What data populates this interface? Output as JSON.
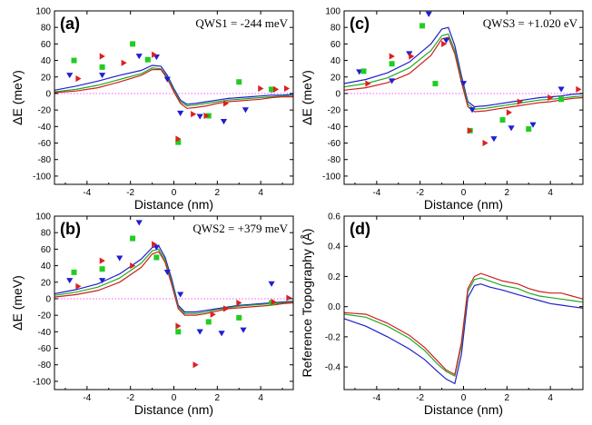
{
  "chart_data": [
    {
      "panel": "(a)",
      "type": "line",
      "annotation": "QWS1 = -244 meV",
      "xlabel": "Distance (nm)",
      "ylabel": "ΔE (meV)",
      "xlim": [
        -5.5,
        5.5
      ],
      "ylim": [
        -110,
        100
      ],
      "xticks": [
        -4,
        -2,
        0,
        2,
        4
      ],
      "yticks": [
        -100,
        -80,
        -60,
        -40,
        -20,
        0,
        20,
        40,
        60,
        80,
        100
      ],
      "zero_line": true,
      "lines": [
        {
          "color": "#1f1fd0",
          "x": [
            -5.5,
            -4.5,
            -3.5,
            -2.5,
            -1.5,
            -1.0,
            -0.6,
            -0.3,
            0.0,
            0.3,
            0.6,
            1.0,
            1.5,
            2.0,
            2.5,
            3.0,
            3.5,
            4.0,
            4.5,
            5.0,
            5.5
          ],
          "y": [
            4,
            9,
            15,
            22,
            28,
            34,
            33,
            22,
            6,
            -8,
            -13,
            -12,
            -10,
            -8,
            -6,
            -5,
            -4,
            -3,
            -2,
            -2,
            -1
          ]
        },
        {
          "color": "#22aa22",
          "x": [
            -5.5,
            -4.5,
            -3.5,
            -2.5,
            -1.5,
            -1.0,
            -0.6,
            -0.3,
            0.0,
            0.3,
            0.6,
            1.0,
            1.5,
            2.0,
            2.5,
            3.0,
            3.5,
            4.0,
            4.5,
            5.0,
            5.5
          ],
          "y": [
            2,
            5,
            10,
            17,
            24,
            31,
            30,
            20,
            4,
            -10,
            -15,
            -14,
            -12,
            -10,
            -8,
            -7,
            -6,
            -5,
            -4,
            -3,
            -3
          ]
        },
        {
          "color": "#d01f1f",
          "x": [
            -5.5,
            -4.5,
            -3.5,
            -2.5,
            -1.5,
            -1.0,
            -0.6,
            -0.3,
            0.0,
            0.3,
            0.6,
            1.0,
            1.5,
            2.0,
            2.5,
            3.0,
            3.5,
            4.0,
            4.5,
            5.0,
            5.5
          ],
          "y": [
            1,
            3,
            7,
            14,
            22,
            29,
            29,
            18,
            2,
            -12,
            -18,
            -17,
            -15,
            -12,
            -10,
            -9,
            -8,
            -7,
            -5,
            -4,
            -4
          ]
        }
      ],
      "markers": [
        {
          "shape": "triangle-down",
          "color": "#1f1fd0",
          "points": [
            [
              -4.8,
              22
            ],
            [
              -3.3,
              22
            ],
            [
              -1.6,
              45
            ],
            [
              -0.8,
              44
            ],
            [
              -0.3,
              17
            ],
            [
              0.3,
              -24
            ],
            [
              1.2,
              -28
            ],
            [
              2.3,
              -34
            ],
            [
              3.3,
              -20
            ],
            [
              4.5,
              4
            ]
          ]
        },
        {
          "shape": "square",
          "color": "#22cc22",
          "points": [
            [
              -4.6,
              40
            ],
            [
              -3.3,
              32
            ],
            [
              -1.9,
              60
            ],
            [
              -1.2,
              41
            ],
            [
              0.2,
              -59
            ],
            [
              1.6,
              -27
            ],
            [
              3.0,
              14
            ],
            [
              4.5,
              5
            ]
          ]
        },
        {
          "shape": "triangle-right",
          "color": "#dd1f1f",
          "points": [
            [
              -4.4,
              18
            ],
            [
              -3.3,
              45
            ],
            [
              -2.3,
              37
            ],
            [
              -0.9,
              47
            ],
            [
              0.2,
              -55
            ],
            [
              0.9,
              -25
            ],
            [
              1.5,
              -27
            ],
            [
              2.4,
              -12
            ],
            [
              4.0,
              6
            ],
            [
              4.7,
              5
            ],
            [
              5.2,
              6
            ]
          ]
        }
      ]
    },
    {
      "panel": "(b)",
      "type": "line",
      "annotation": "QWS2 = +379 meV",
      "xlabel": "Distance (nm)",
      "ylabel": "ΔE (meV)",
      "xlim": [
        -5.5,
        5.5
      ],
      "ylim": [
        -110,
        100
      ],
      "xticks": [
        -4,
        -2,
        0,
        2,
        4
      ],
      "yticks": [
        -100,
        -80,
        -60,
        -40,
        -20,
        0,
        20,
        40,
        60,
        80,
        100
      ],
      "zero_line": true,
      "lines": [
        {
          "color": "#1f1fd0",
          "x": [
            -5.5,
            -4.5,
            -3.5,
            -2.5,
            -1.5,
            -1.0,
            -0.7,
            -0.4,
            -0.1,
            0.2,
            0.5,
            1.0,
            1.5,
            2.0,
            2.5,
            3.0,
            3.5,
            4.0,
            4.5,
            5.0,
            5.5
          ],
          "y": [
            6,
            11,
            18,
            30,
            48,
            62,
            64,
            50,
            24,
            -8,
            -16,
            -16,
            -14,
            -12,
            -10,
            -8,
            -7,
            -6,
            -5,
            -4,
            -3
          ]
        },
        {
          "color": "#22aa22",
          "x": [
            -5.5,
            -4.5,
            -3.5,
            -2.5,
            -1.5,
            -1.0,
            -0.7,
            -0.4,
            -0.1,
            0.2,
            0.5,
            1.0,
            1.5,
            2.0,
            2.5,
            3.0,
            3.5,
            4.0,
            4.5,
            5.0,
            5.5
          ],
          "y": [
            4,
            8,
            14,
            25,
            43,
            58,
            60,
            47,
            20,
            -10,
            -18,
            -18,
            -16,
            -13,
            -11,
            -9,
            -8,
            -7,
            -6,
            -5,
            -4
          ]
        },
        {
          "color": "#d01f1f",
          "x": [
            -5.5,
            -4.5,
            -3.5,
            -2.5,
            -1.5,
            -1.0,
            -0.7,
            -0.4,
            -0.1,
            0.2,
            0.5,
            1.0,
            1.5,
            2.0,
            2.5,
            3.0,
            3.5,
            4.0,
            4.5,
            5.0,
            5.5
          ],
          "y": [
            2,
            5,
            10,
            20,
            38,
            54,
            57,
            44,
            17,
            -12,
            -20,
            -20,
            -18,
            -15,
            -12,
            -11,
            -10,
            -9,
            -8,
            -6,
            -5
          ]
        }
      ],
      "markers": [
        {
          "shape": "triangle-down",
          "color": "#1f1fd0",
          "points": [
            [
              -4.8,
              22
            ],
            [
              -3.3,
              22
            ],
            [
              -2.5,
              49
            ],
            [
              -1.6,
              92
            ],
            [
              -0.8,
              62
            ],
            [
              -0.3,
              32
            ],
            [
              0.3,
              5
            ],
            [
              1.2,
              -40
            ],
            [
              2.2,
              -42
            ],
            [
              3.2,
              -38
            ],
            [
              4.5,
              18
            ]
          ]
        },
        {
          "shape": "square",
          "color": "#22cc22",
          "points": [
            [
              -4.6,
              32
            ],
            [
              -3.3,
              36
            ],
            [
              -1.9,
              73
            ],
            [
              -0.8,
              50
            ],
            [
              0.2,
              -40
            ],
            [
              1.6,
              -28
            ],
            [
              3.0,
              -23
            ],
            [
              4.5,
              -5
            ]
          ]
        },
        {
          "shape": "triangle-right",
          "color": "#dd1f1f",
          "points": [
            [
              -4.4,
              15
            ],
            [
              -3.3,
              46
            ],
            [
              -1.9,
              40
            ],
            [
              -0.9,
              66
            ],
            [
              0.2,
              -33
            ],
            [
              1.0,
              -80
            ],
            [
              1.8,
              -19
            ],
            [
              2.4,
              -12
            ],
            [
              3.0,
              -5
            ],
            [
              4.6,
              -4
            ],
            [
              5.3,
              1
            ]
          ]
        }
      ]
    },
    {
      "panel": "(c)",
      "type": "line",
      "annotation": "QWS3 = +1.020 eV",
      "xlabel": "Distance (nm)",
      "ylabel": "ΔE (meV)",
      "xlim": [
        -5.5,
        5.5
      ],
      "ylim": [
        -110,
        100
      ],
      "xticks": [
        -4,
        -2,
        0,
        2,
        4
      ],
      "yticks": [
        -100,
        -80,
        -60,
        -40,
        -20,
        0,
        20,
        40,
        60,
        80,
        100
      ],
      "zero_line": true,
      "lines": [
        {
          "color": "#1f1fd0",
          "x": [
            -5.5,
            -4.5,
            -3.5,
            -2.5,
            -1.5,
            -1.0,
            -0.7,
            -0.4,
            -0.1,
            0.2,
            0.5,
            1.0,
            1.5,
            2.0,
            2.5,
            3.0,
            3.5,
            4.0,
            4.5,
            5.0,
            5.5
          ],
          "y": [
            12,
            17,
            25,
            38,
            60,
            78,
            80,
            58,
            22,
            -10,
            -16,
            -15,
            -13,
            -11,
            -9,
            -7,
            -5,
            -4,
            -3,
            -1,
            0
          ]
        },
        {
          "color": "#22aa22",
          "x": [
            -5.5,
            -4.5,
            -3.5,
            -2.5,
            -1.5,
            -1.0,
            -0.7,
            -0.4,
            -0.1,
            0.2,
            0.5,
            1.0,
            1.5,
            2.0,
            2.5,
            3.0,
            3.5,
            4.0,
            4.5,
            5.0,
            5.5
          ],
          "y": [
            8,
            12,
            19,
            31,
            52,
            70,
            72,
            52,
            18,
            -13,
            -19,
            -18,
            -16,
            -14,
            -12,
            -10,
            -8,
            -7,
            -6,
            -4,
            -3
          ]
        },
        {
          "color": "#d01f1f",
          "x": [
            -5.5,
            -4.5,
            -3.5,
            -2.5,
            -1.5,
            -1.0,
            -0.7,
            -0.4,
            -0.1,
            0.2,
            0.5,
            1.0,
            1.5,
            2.0,
            2.5,
            3.0,
            3.5,
            4.0,
            4.5,
            5.0,
            5.5
          ],
          "y": [
            4,
            7,
            13,
            24,
            46,
            66,
            68,
            48,
            14,
            -16,
            -22,
            -21,
            -19,
            -17,
            -15,
            -13,
            -11,
            -10,
            -8,
            -6,
            -5
          ]
        }
      ],
      "markers": [
        {
          "shape": "triangle-down",
          "color": "#1f1fd0",
          "points": [
            [
              -4.8,
              26
            ],
            [
              -3.3,
              15
            ],
            [
              -2.5,
              48
            ],
            [
              -1.6,
              96
            ],
            [
              -0.8,
              64
            ],
            [
              0.0,
              12
            ],
            [
              0.4,
              -20
            ],
            [
              1.4,
              -55
            ],
            [
              2.2,
              -42
            ],
            [
              3.2,
              -38
            ],
            [
              4.5,
              5
            ]
          ]
        },
        {
          "shape": "square",
          "color": "#22cc22",
          "points": [
            [
              -4.6,
              27
            ],
            [
              -3.3,
              36
            ],
            [
              -1.9,
              82
            ],
            [
              -1.3,
              12
            ],
            [
              0.3,
              -45
            ],
            [
              1.8,
              -32
            ],
            [
              3.0,
              -43
            ],
            [
              4.5,
              -7
            ]
          ]
        },
        {
          "shape": "triangle-right",
          "color": "#dd1f1f",
          "points": [
            [
              -4.4,
              12
            ],
            [
              -3.3,
              45
            ],
            [
              -2.4,
              45
            ],
            [
              -0.9,
              60
            ],
            [
              0.3,
              -45
            ],
            [
              1.0,
              -60
            ],
            [
              2.1,
              -23
            ],
            [
              2.6,
              -10
            ],
            [
              4.0,
              -5
            ],
            [
              5.3,
              5
            ]
          ]
        }
      ]
    },
    {
      "panel": "(d)",
      "type": "line",
      "annotation": "",
      "xlabel": "Distance (nm)",
      "ylabel": "Reference Topography (Å)",
      "xlim": [
        -5.5,
        5.5
      ],
      "ylim": [
        -0.55,
        0.6
      ],
      "xticks": [
        -4,
        -2,
        0,
        2,
        4
      ],
      "yticks": [
        -0.4,
        -0.2,
        0.0,
        0.2,
        0.4,
        0.6
      ],
      "ytick_labels": [
        "-0.4",
        "-0.2",
        "0.0",
        "0.2",
        "0.4",
        "0.6"
      ],
      "zero_line": false,
      "lines": [
        {
          "color": "#1f1fd0",
          "x": [
            -5.5,
            -4.5,
            -3.5,
            -2.5,
            -1.8,
            -1.2,
            -0.8,
            -0.4,
            -0.1,
            0.2,
            0.5,
            0.8,
            1.2,
            1.8,
            2.5,
            3.0,
            3.5,
            4.0,
            4.5,
            5.0,
            5.5
          ],
          "y": [
            -0.08,
            -0.13,
            -0.2,
            -0.28,
            -0.35,
            -0.43,
            -0.48,
            -0.51,
            -0.32,
            0.06,
            0.14,
            0.15,
            0.13,
            0.11,
            0.08,
            0.06,
            0.04,
            0.02,
            0.01,
            0.0,
            -0.01
          ]
        },
        {
          "color": "#22aa22",
          "x": [
            -5.5,
            -4.5,
            -3.5,
            -2.5,
            -1.8,
            -1.2,
            -0.8,
            -0.4,
            -0.1,
            0.2,
            0.5,
            0.8,
            1.2,
            1.8,
            2.5,
            3.0,
            3.5,
            4.0,
            4.5,
            5.0,
            5.5
          ],
          "y": [
            -0.05,
            -0.07,
            -0.13,
            -0.21,
            -0.29,
            -0.38,
            -0.43,
            -0.46,
            -0.26,
            0.1,
            0.18,
            0.19,
            0.17,
            0.14,
            0.12,
            0.09,
            0.07,
            0.06,
            0.05,
            0.04,
            0.03
          ]
        },
        {
          "color": "#d01f1f",
          "x": [
            -5.5,
            -4.5,
            -3.5,
            -2.5,
            -1.8,
            -1.2,
            -0.8,
            -0.4,
            -0.1,
            0.2,
            0.5,
            0.8,
            1.2,
            1.8,
            2.5,
            3.0,
            3.5,
            4.0,
            4.5,
            5.0,
            5.5
          ],
          "y": [
            -0.04,
            -0.05,
            -0.11,
            -0.19,
            -0.27,
            -0.36,
            -0.42,
            -0.45,
            -0.24,
            0.12,
            0.2,
            0.22,
            0.2,
            0.17,
            0.15,
            0.12,
            0.1,
            0.09,
            0.09,
            0.07,
            0.05
          ]
        }
      ],
      "markers": []
    }
  ]
}
